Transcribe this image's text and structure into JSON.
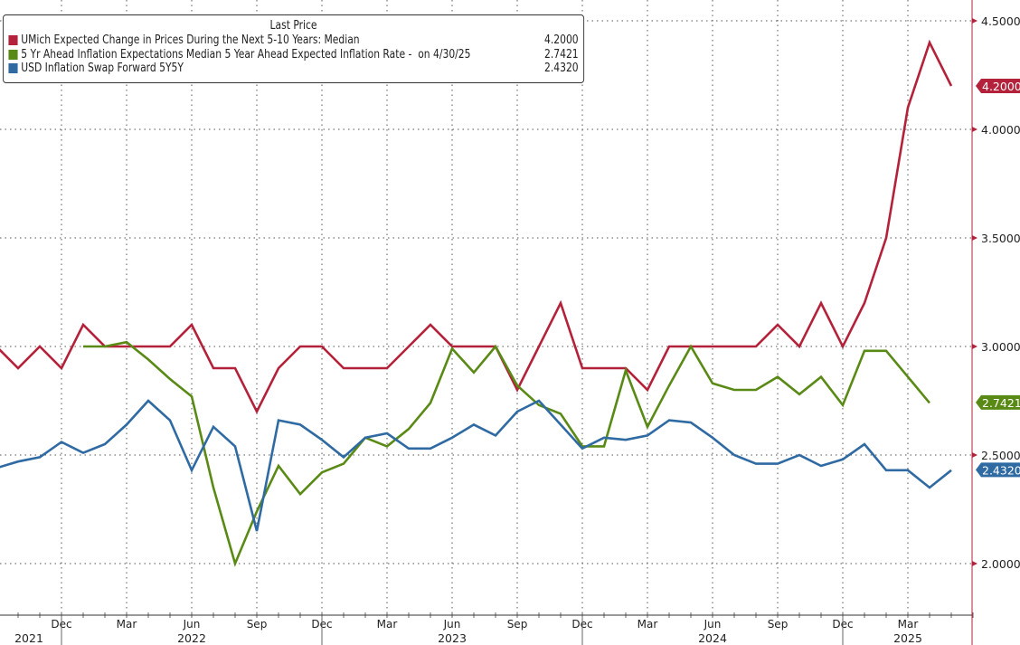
{
  "chart_data": {
    "type": "line",
    "title": "",
    "legend_title": "Last Price",
    "legend_position": "top-left",
    "xlabel": "",
    "ylabel": "",
    "ylim": [
      2.0,
      4.5
    ],
    "y_ticks": [
      "2.0000",
      "2.5000",
      "3.0000",
      "3.5000",
      "4.0000",
      "4.5000"
    ],
    "y_tick_values": [
      2.0,
      2.5,
      3.0,
      3.5,
      4.0,
      4.5
    ],
    "grid": true,
    "x": [
      "Sep 2021",
      "Oct 2021",
      "Nov 2021",
      "Dec 2021",
      "Jan 2022",
      "Feb 2022",
      "Mar 2022",
      "Apr 2022",
      "May 2022",
      "Jun 2022",
      "Jul 2022",
      "Aug 2022",
      "Sep 2022",
      "Oct 2022",
      "Nov 2022",
      "Dec 2022",
      "Jan 2023",
      "Feb 2023",
      "Mar 2023",
      "Apr 2023",
      "May 2023",
      "Jun 2023",
      "Jul 2023",
      "Aug 2023",
      "Sep 2023",
      "Oct 2023",
      "Nov 2023",
      "Dec 2023",
      "Jan 2024",
      "Feb 2024",
      "Mar 2024",
      "Apr 2024",
      "May 2024",
      "Jun 2024",
      "Jul 2024",
      "Aug 2024",
      "Sep 2024",
      "Oct 2024",
      "Nov 2024",
      "Dec 2024",
      "Jan 2025",
      "Feb 2025",
      "Mar 2025",
      "Apr 2025",
      "May 2025"
    ],
    "x_tick_labels": [
      {
        "label": "Dec",
        "index": 3
      },
      {
        "label": "Mar",
        "index": 6
      },
      {
        "label": "Jun",
        "index": 9
      },
      {
        "label": "Sep",
        "index": 12
      },
      {
        "label": "Dec",
        "index": 15
      },
      {
        "label": "Mar",
        "index": 18
      },
      {
        "label": "Jun",
        "index": 21
      },
      {
        "label": "Sep",
        "index": 24
      },
      {
        "label": "Dec",
        "index": 27
      },
      {
        "label": "Mar",
        "index": 30
      },
      {
        "label": "Jun",
        "index": 33
      },
      {
        "label": "Sep",
        "index": 36
      },
      {
        "label": "Dec",
        "index": 39
      },
      {
        "label": "Mar",
        "index": 42
      }
    ],
    "year_labels": [
      {
        "label": "2021",
        "index": 1.5
      },
      {
        "label": "2022",
        "index": 9
      },
      {
        "label": "2023",
        "index": 21
      },
      {
        "label": "2024",
        "index": 33
      },
      {
        "label": "2025",
        "index": 42
      }
    ],
    "series": [
      {
        "name": "UMich Expected Change in Prices During the Next 5-10 Years: Median",
        "last_value": "4.2000",
        "color": "#b3223a",
        "values": [
          3.0,
          2.9,
          3.0,
          2.9,
          3.1,
          3.0,
          3.0,
          3.0,
          3.0,
          3.1,
          2.9,
          2.9,
          2.7,
          2.9,
          3.0,
          3.0,
          2.9,
          2.9,
          2.9,
          3.0,
          3.1,
          3.0,
          3.0,
          3.0,
          2.8,
          3.0,
          3.2,
          2.9,
          2.9,
          2.9,
          2.8,
          3.0,
          3.0,
          3.0,
          3.0,
          3.0,
          3.1,
          3.0,
          3.2,
          3.0,
          3.2,
          3.5,
          4.1,
          4.4,
          4.2
        ]
      },
      {
        "name": "5 Yr Ahead Inflation Expectations Median 5 Year Ahead Expected Inflation Rate -  on 4/30/25",
        "last_value": "2.7421",
        "color": "#5a8a16",
        "values": [
          null,
          null,
          null,
          null,
          3.0,
          3.0,
          3.02,
          2.94,
          2.85,
          2.77,
          2.35,
          2.0,
          2.24,
          2.45,
          2.32,
          2.42,
          2.46,
          2.58,
          2.54,
          2.62,
          2.74,
          2.99,
          2.88,
          3.0,
          2.82,
          2.73,
          2.69,
          2.54,
          2.54,
          2.89,
          2.63,
          2.82,
          3.0,
          2.83,
          2.8,
          2.8,
          2.86,
          2.78,
          2.86,
          2.73,
          2.98,
          2.98,
          2.86,
          2.74,
          null
        ]
      },
      {
        "name": "USD Inflation Swap Forward 5Y5Y",
        "last_value": "2.4320",
        "color": "#2f6aa3",
        "values": [
          2.44,
          2.47,
          2.49,
          2.56,
          2.51,
          2.55,
          2.64,
          2.75,
          2.66,
          2.43,
          2.63,
          2.54,
          2.15,
          2.66,
          2.64,
          2.57,
          2.49,
          2.58,
          2.6,
          2.53,
          2.53,
          2.58,
          2.64,
          2.59,
          2.7,
          2.75,
          2.64,
          2.53,
          2.58,
          2.57,
          2.59,
          2.66,
          2.65,
          2.58,
          2.5,
          2.46,
          2.46,
          2.5,
          2.45,
          2.48,
          2.55,
          2.43,
          2.43,
          2.35,
          2.43
        ]
      }
    ]
  }
}
